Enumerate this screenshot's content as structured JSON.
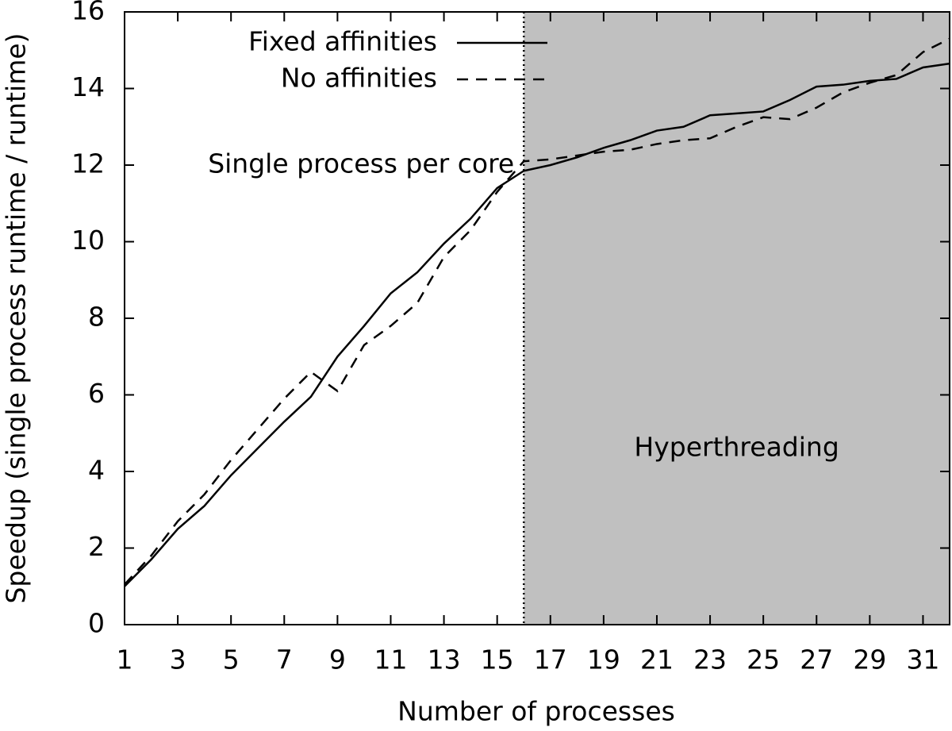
{
  "chart_data": {
    "type": "line",
    "x_label": "Number of processes",
    "y_label": "Speedup (single process runtime / runtime)",
    "x": [
      1,
      2,
      3,
      4,
      5,
      6,
      7,
      8,
      9,
      10,
      11,
      12,
      13,
      14,
      15,
      16,
      17,
      18,
      19,
      20,
      21,
      22,
      23,
      24,
      25,
      26,
      27,
      28,
      29,
      30,
      31,
      32
    ],
    "series": [
      {
        "name": "Fixed affinities",
        "color": "#000000",
        "dash": "solid",
        "values": [
          1.0,
          1.7,
          2.5,
          3.1,
          3.9,
          4.6,
          5.3,
          5.95,
          7.0,
          7.8,
          8.65,
          9.2,
          9.95,
          10.6,
          11.4,
          11.85,
          12.0,
          12.2,
          12.45,
          12.65,
          12.9,
          13.0,
          13.3,
          13.35,
          13.4,
          13.7,
          14.05,
          14.1,
          14.2,
          14.25,
          14.55,
          14.65
        ]
      },
      {
        "name": "No affinities",
        "color": "#000000",
        "dash": "dashed",
        "values": [
          1.05,
          1.8,
          2.7,
          3.4,
          4.3,
          5.1,
          5.9,
          6.6,
          6.1,
          7.3,
          7.8,
          8.4,
          9.6,
          10.3,
          11.3,
          12.1,
          12.15,
          12.25,
          12.35,
          12.4,
          12.55,
          12.65,
          12.7,
          13.0,
          13.25,
          13.2,
          13.5,
          13.9,
          14.15,
          14.35,
          14.95,
          15.3
        ]
      }
    ],
    "xlim": [
      1,
      32
    ],
    "xticks": [
      1,
      3,
      5,
      7,
      9,
      11,
      13,
      15,
      17,
      19,
      21,
      23,
      25,
      27,
      29,
      31
    ],
    "ylim": [
      0,
      16
    ],
    "yticks": [
      0,
      2,
      4,
      6,
      8,
      10,
      12,
      14,
      16
    ],
    "regions": [
      {
        "from": 16,
        "to": 32,
        "label": "Hyperthreading",
        "color": "#c0c0c0"
      }
    ],
    "annotations": [
      {
        "text": "Single process per core",
        "x": 16,
        "y": 12
      }
    ],
    "legend": "top"
  }
}
